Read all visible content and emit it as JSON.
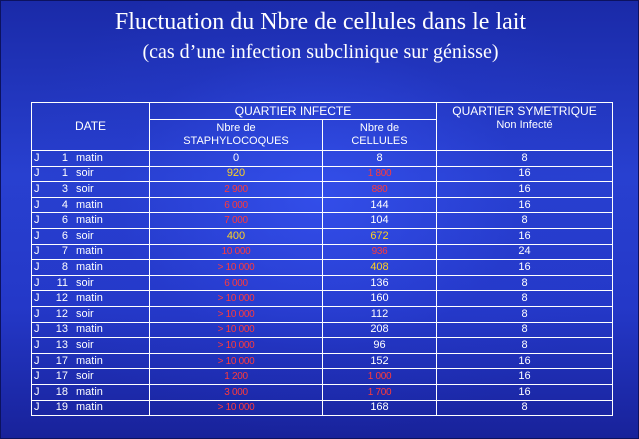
{
  "title": {
    "line1": "Fluctuation du Nbre de cellules dans le lait",
    "line2": "(cas d’une infection subclinique sur génisse)"
  },
  "colors": {
    "background": "#2a3fc9",
    "white": "#ffffff",
    "yellow": "#ffd21f",
    "red": "#ff1a1a"
  },
  "table": {
    "header": {
      "date": "DATE",
      "group_infected": "QUARTIER  INFECTE",
      "col_staph": "Nbre de\nSTAPHYLOCOQUES",
      "col_staph_l1": "Nbre de",
      "col_staph_l2": "STAPHYLOCOQUES",
      "col_cells_l1": "Nbre de",
      "col_cells_l2": "CELLULES",
      "group_sym": "QUARTIER SYMETRIQUE",
      "sym_sub": "Non Infecté"
    },
    "rows": [
      {
        "j": "J",
        "n": "1",
        "p": "matin",
        "staph": "0",
        "staph_c": "white",
        "cells": "8",
        "cells_c": "white",
        "sym": "8"
      },
      {
        "j": "J",
        "n": "1",
        "p": "soir",
        "staph": "920",
        "staph_c": "yellow",
        "cells": "1 800",
        "cells_c": "red",
        "sym": "16"
      },
      {
        "j": "J",
        "n": "3",
        "p": "soir",
        "staph": "2 900",
        "staph_c": "red",
        "cells": "880",
        "cells_c": "red",
        "sym": "16"
      },
      {
        "j": "J",
        "n": "4",
        "p": "matin",
        "staph": "6 000",
        "staph_c": "red",
        "cells": "144",
        "cells_c": "white",
        "sym": "16"
      },
      {
        "j": "J",
        "n": "6",
        "p": "matin",
        "staph": "7 000",
        "staph_c": "red",
        "cells": "104",
        "cells_c": "white",
        "sym": "8"
      },
      {
        "j": "J",
        "n": "6",
        "p": "soir",
        "staph": "400",
        "staph_c": "yellow",
        "cells": "672",
        "cells_c": "yellow",
        "sym": "16"
      },
      {
        "j": "J",
        "n": "7",
        "p": "matin",
        "staph": "10 000",
        "staph_c": "red",
        "cells": "936",
        "cells_c": "red",
        "sym": "24"
      },
      {
        "j": "J",
        "n": "8",
        "p": "matin",
        "staph": "> 10 000",
        "staph_c": "red",
        "cells": "408",
        "cells_c": "yellow",
        "sym": "16"
      },
      {
        "j": "J",
        "n": "11",
        "p": "soir",
        "staph": "6 000",
        "staph_c": "red",
        "cells": "136",
        "cells_c": "white",
        "sym": "8"
      },
      {
        "j": "J",
        "n": "12",
        "p": "matin",
        "staph": "> 10 000",
        "staph_c": "red",
        "cells": "160",
        "cells_c": "white",
        "sym": "8"
      },
      {
        "j": "J",
        "n": "12",
        "p": "soir",
        "staph": "> 10 000",
        "staph_c": "red",
        "cells": "112",
        "cells_c": "white",
        "sym": "8"
      },
      {
        "j": "J",
        "n": "13",
        "p": "matin",
        "staph": "> 10 000",
        "staph_c": "red",
        "cells": "208",
        "cells_c": "white",
        "sym": "8"
      },
      {
        "j": "J",
        "n": "13",
        "p": "soir",
        "staph": "> 10 000",
        "staph_c": "red",
        "cells": "96",
        "cells_c": "white",
        "sym": "8"
      },
      {
        "j": "J",
        "n": "17",
        "p": "matin",
        "staph": "> 10 000",
        "staph_c": "red",
        "cells": "152",
        "cells_c": "white",
        "sym": "16"
      },
      {
        "j": "J",
        "n": "17",
        "p": "soir",
        "staph": "1 200",
        "staph_c": "red",
        "cells": "1 000",
        "cells_c": "red",
        "sym": "16"
      },
      {
        "j": "J",
        "n": "18",
        "p": "matin",
        "staph": "3 000",
        "staph_c": "red",
        "cells": "1 700",
        "cells_c": "red",
        "sym": "16"
      },
      {
        "j": "J",
        "n": "19",
        "p": "matin",
        "staph": "> 10 000",
        "staph_c": "red",
        "cells": "168",
        "cells_c": "white",
        "sym": "8"
      }
    ]
  }
}
